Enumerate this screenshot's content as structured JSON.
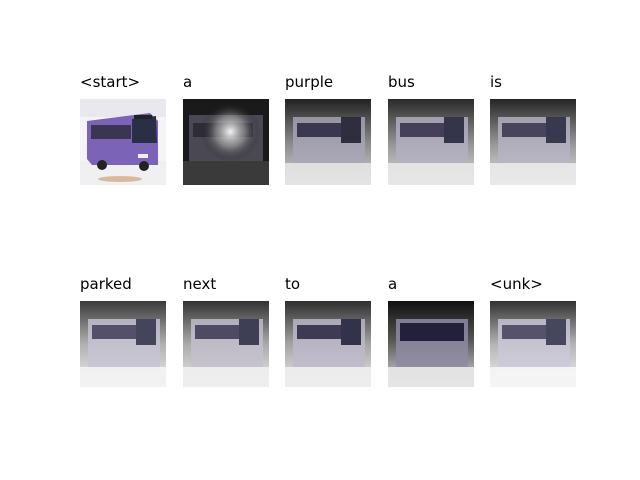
{
  "figure": {
    "rows": [
      {
        "panels": [
          {
            "word": "<start>",
            "kind": "original"
          },
          {
            "word": "a",
            "kind": "attention",
            "focus": "center-top"
          },
          {
            "word": "purple",
            "kind": "attention",
            "focus": "lower"
          },
          {
            "word": "bus",
            "kind": "attention",
            "focus": "lower"
          },
          {
            "word": "is",
            "kind": "attention",
            "focus": "lower"
          }
        ]
      },
      {
        "panels": [
          {
            "word": "parked",
            "kind": "attention",
            "focus": "lower"
          },
          {
            "word": "next",
            "kind": "attention",
            "focus": "lower"
          },
          {
            "word": "to",
            "kind": "attention",
            "focus": "lower"
          },
          {
            "word": "a",
            "kind": "attention",
            "focus": "top-dark"
          },
          {
            "word": "<unk>",
            "kind": "attention",
            "focus": "lower"
          }
        ]
      }
    ],
    "colors": {
      "bus_body": "#7b64b8",
      "bus_window": "#2a2f45",
      "attention_bright": "#ffffff",
      "attention_dark": "#1a1a1a"
    }
  }
}
